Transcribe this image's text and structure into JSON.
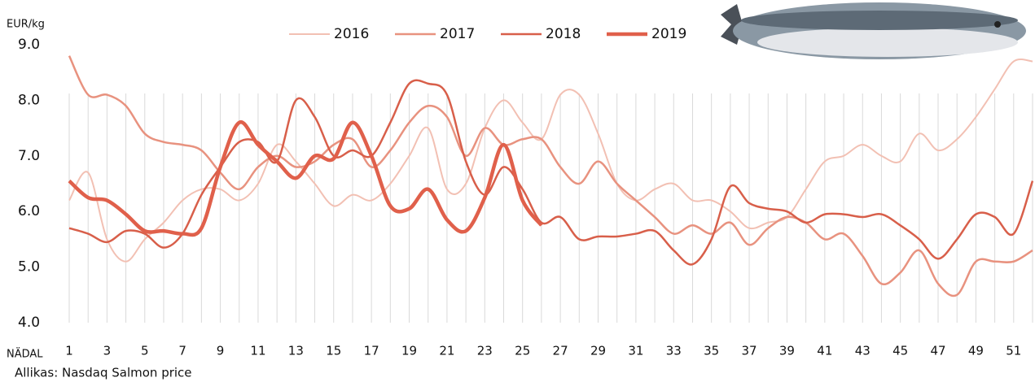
{
  "chart_data": {
    "type": "line",
    "y_label": "EUR/kg",
    "x_label": "NÄDAL",
    "source": "Allikas: Nasdaq Salmon price",
    "x": [
      1,
      2,
      3,
      4,
      5,
      6,
      7,
      8,
      9,
      10,
      11,
      12,
      13,
      14,
      15,
      16,
      17,
      18,
      19,
      20,
      21,
      22,
      23,
      24,
      25,
      26,
      27,
      28,
      29,
      30,
      31,
      32,
      33,
      34,
      35,
      36,
      37,
      38,
      39,
      40,
      41,
      42,
      43,
      44,
      45,
      46,
      47,
      48,
      49,
      50,
      51,
      52
    ],
    "xlim": [
      1,
      52
    ],
    "xticks": [
      1,
      3,
      5,
      7,
      9,
      11,
      13,
      15,
      17,
      19,
      21,
      23,
      25,
      27,
      29,
      31,
      33,
      35,
      37,
      39,
      41,
      43,
      45,
      47,
      49,
      51
    ],
    "ylim": [
      4,
      9
    ],
    "yticks": [
      {
        "value": 4,
        "label": "4.0"
      },
      {
        "value": 5,
        "label": "5.0"
      },
      {
        "value": 6,
        "label": "6.0"
      },
      {
        "value": 7,
        "label": "7.0"
      },
      {
        "value": 8,
        "label": "8.0"
      },
      {
        "value": 9,
        "label": "9.0"
      }
    ],
    "vertical_grid": true,
    "series": [
      {
        "name": "2016",
        "color": "#f2c0b3",
        "line_width": 2,
        "values": [
          6.2,
          6.7,
          5.5,
          5.1,
          5.5,
          5.8,
          6.2,
          6.4,
          6.4,
          6.2,
          6.5,
          7.2,
          6.9,
          6.5,
          6.1,
          6.3,
          6.2,
          6.5,
          7.0,
          7.5,
          6.4,
          6.5,
          7.5,
          8.0,
          7.6,
          7.3,
          8.1,
          8.1,
          7.4,
          6.5,
          6.2,
          6.4,
          6.5,
          6.2,
          6.2,
          6.0,
          5.7,
          5.8,
          5.9,
          6.4,
          6.9,
          7.0,
          7.2,
          7.0,
          6.9,
          7.4,
          7.1,
          7.3,
          7.7,
          8.2,
          8.7,
          8.7
        ]
      },
      {
        "name": "2017",
        "color": "#e8927f",
        "line_width": 2.5,
        "values": [
          8.8,
          8.1,
          8.1,
          7.9,
          7.4,
          7.25,
          7.2,
          7.1,
          6.7,
          6.4,
          6.8,
          7.0,
          6.8,
          6.9,
          7.2,
          7.3,
          6.8,
          7.1,
          7.6,
          7.9,
          7.7,
          7.0,
          7.5,
          7.2,
          7.3,
          7.3,
          6.8,
          6.5,
          6.9,
          6.5,
          6.2,
          5.9,
          5.6,
          5.75,
          5.6,
          5.8,
          5.4,
          5.7,
          5.9,
          5.8,
          5.5,
          5.6,
          5.2,
          4.7,
          4.9,
          5.3,
          4.7,
          4.5,
          5.1,
          5.1,
          5.1,
          5.3
        ]
      },
      {
        "name": "2018",
        "color": "#d85f4a",
        "line_width": 2.5,
        "values": [
          5.7,
          5.6,
          5.45,
          5.65,
          5.6,
          5.35,
          5.6,
          6.3,
          6.8,
          7.25,
          7.25,
          6.9,
          8.0,
          7.7,
          7.0,
          7.1,
          7.0,
          7.6,
          8.3,
          8.3,
          8.1,
          6.9,
          6.3,
          6.8,
          6.4,
          5.8,
          5.9,
          5.5,
          5.55,
          5.55,
          5.6,
          5.65,
          5.3,
          5.05,
          5.5,
          6.45,
          6.15,
          6.05,
          6.0,
          5.8,
          5.95,
          5.95,
          5.9,
          5.95,
          5.75,
          5.5,
          5.15,
          5.5,
          5.95,
          5.9,
          5.6,
          6.55
        ]
      },
      {
        "name": "2019",
        "color": "#e0604b",
        "line_width": 4.5,
        "values": [
          6.55,
          6.25,
          6.2,
          5.95,
          5.65,
          5.65,
          5.6,
          5.7,
          6.8,
          7.6,
          7.2,
          6.9,
          6.6,
          7.0,
          6.95,
          7.6,
          7.0,
          6.1,
          6.05,
          6.4,
          5.85,
          5.65,
          6.25,
          7.2,
          6.2,
          5.75,
          null,
          null,
          null,
          null,
          null,
          null,
          null,
          null,
          null,
          null,
          null,
          null,
          null,
          null,
          null,
          null,
          null,
          null,
          null,
          null,
          null,
          null,
          null,
          null,
          null,
          null
        ]
      }
    ]
  }
}
